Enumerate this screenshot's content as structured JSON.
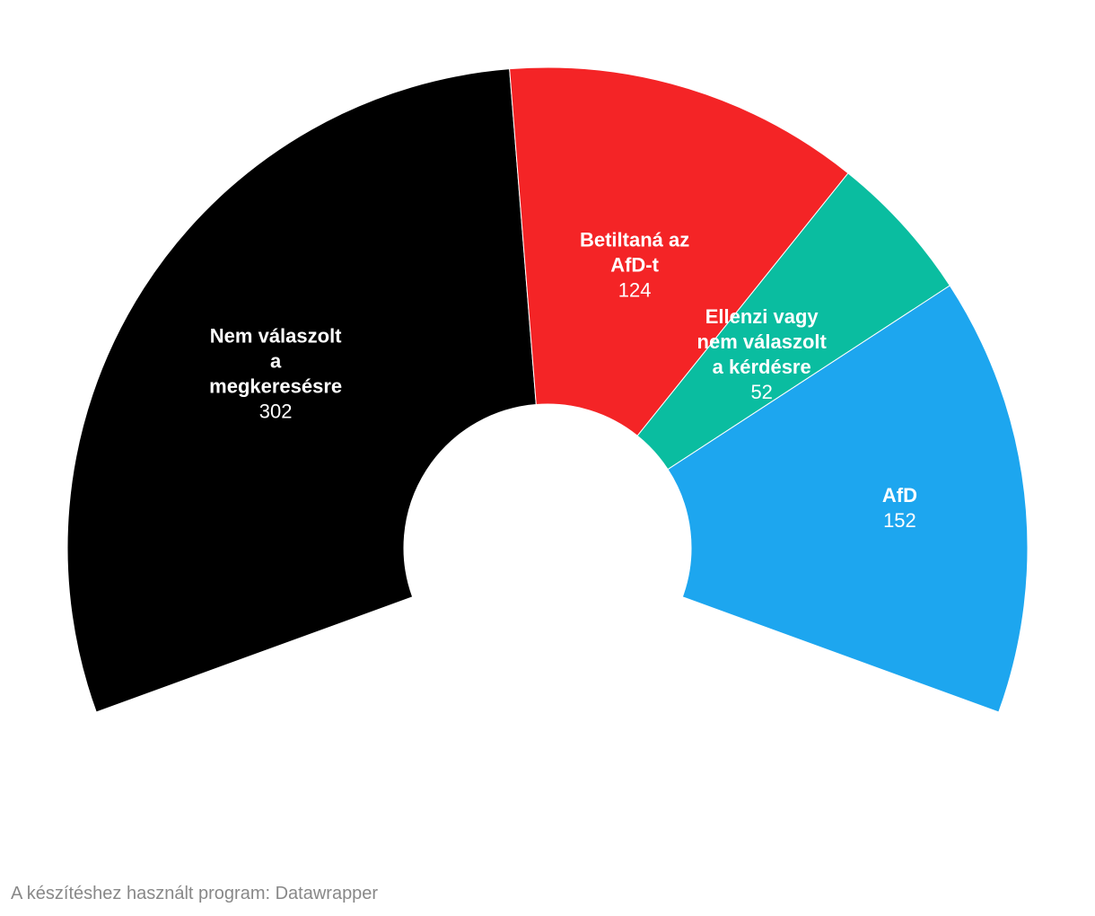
{
  "chart_data": {
    "type": "pie",
    "subtype": "parliament-semicircle",
    "total": 630,
    "slices": [
      {
        "label_lines": [
          "Nem válaszolt",
          "a",
          "megkeresésre"
        ],
        "name": "Nem válaszolt a megkeresésre",
        "value": 302,
        "value_label": "302",
        "color": "#000000"
      },
      {
        "label_lines": [
          "Betiltaná az",
          "AfD-t"
        ],
        "name": "Betiltaná az AfD-t",
        "value": 124,
        "value_label": "124",
        "color": "#f42426"
      },
      {
        "label_lines": [
          "Ellenzi vagy",
          "nem válaszolt",
          "a kérdésre"
        ],
        "name": "Ellenzi vagy nem válaszolt a kérdésre",
        "value": 52,
        "value_label": "52",
        "color": "#0abda0"
      },
      {
        "label_lines": [
          "AfD"
        ],
        "name": "AfD",
        "value": 152,
        "value_label": "152",
        "color": "#1da6ef"
      }
    ]
  },
  "footer": {
    "credit": "A készítéshez használt program: Datawrapper"
  }
}
